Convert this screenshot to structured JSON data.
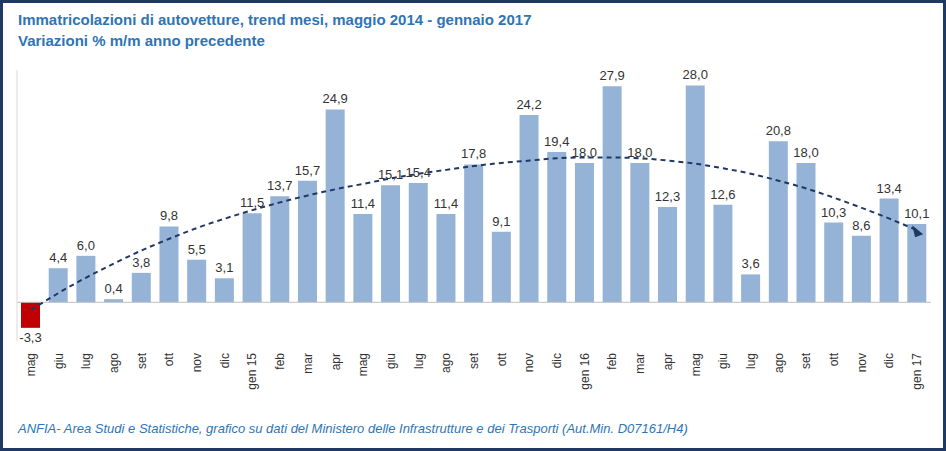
{
  "chart_data": {
    "type": "bar",
    "title": "Immatricolazioni di autovetture, trend mesi, maggio 2014 - gennaio 2017",
    "subtitle": "Variazioni % m/m anno precedente",
    "annotations": [
      "ANFIA- Area Studi e Statistiche, grafico su dati del Ministero delle Infrastrutture e dei Trasporti (Aut.Min. D07161/H4)"
    ],
    "categories": [
      "mag",
      "giu",
      "lug",
      "ago",
      "set",
      "ott",
      "nov",
      "dic",
      "gen 15",
      "feb",
      "mar",
      "apr",
      "mag",
      "giu",
      "lug",
      "ago",
      "set",
      "ott",
      "nov",
      "dic",
      "gen 16",
      "feb",
      "mar",
      "apr",
      "mag",
      "giu",
      "lug",
      "ago",
      "set",
      "ott",
      "nov",
      "dic",
      "gen 17"
    ],
    "series": [
      {
        "type": "bar",
        "values": [
          -3.3,
          4.4,
          6.0,
          0.4,
          3.8,
          9.8,
          5.5,
          3.1,
          11.5,
          13.7,
          15.7,
          24.9,
          11.4,
          15.1,
          15.4,
          11.4,
          17.8,
          9.1,
          24.2,
          19.4,
          18.0,
          27.9,
          18.0,
          12.3,
          28.0,
          12.6,
          3.6,
          20.8,
          18.0,
          10.3,
          8.6,
          13.4,
          10.1
        ],
        "value_labels": [
          "-3,3",
          "4,4",
          "6,0",
          "0,4",
          "3,8",
          "9,8",
          "5,5",
          "3,1",
          "11,5",
          "13,7",
          "15,7",
          "24,9",
          "11,4",
          "15,1",
          "15,4",
          "11,4",
          "17,8",
          "9,1",
          "24,2",
          "19,4",
          "18,0",
          "27,9",
          "18,0",
          "12,3",
          "28,0",
          "12,6",
          "3,6",
          "20,8",
          "18,0",
          "10,3",
          "8,6",
          "13,4",
          "10,1"
        ],
        "colors": [
          "#C00000",
          "#95B3D7",
          "#95B3D7",
          "#95B3D7",
          "#95B3D7",
          "#95B3D7",
          "#95B3D7",
          "#95B3D7",
          "#95B3D7",
          "#95B3D7",
          "#95B3D7",
          "#95B3D7",
          "#95B3D7",
          "#95B3D7",
          "#95B3D7",
          "#95B3D7",
          "#95B3D7",
          "#95B3D7",
          "#95B3D7",
          "#95B3D7",
          "#95B3D7",
          "#95B3D7",
          "#95B3D7",
          "#95B3D7",
          "#95B3D7",
          "#95B3D7",
          "#95B3D7",
          "#95B3D7",
          "#95B3D7",
          "#95B3D7",
          "#95B3D7",
          "#95B3D7",
          "#95B3D7"
        ],
        "data_labels": true
      },
      {
        "type": "line",
        "values": [
          -1.0,
          1.2,
          3.2,
          5.0,
          6.7,
          8.2,
          9.6,
          10.8,
          11.9,
          12.9,
          13.8,
          14.6,
          15.3,
          16.0,
          16.6,
          17.1,
          17.6,
          18.0,
          18.3,
          18.6,
          18.7,
          18.7,
          18.6,
          18.3,
          17.9,
          17.3,
          16.6,
          15.7,
          14.7,
          13.5,
          12.2,
          10.8,
          9.3
        ],
        "color": "#1F3864",
        "line_style": "dashed"
      }
    ],
    "ylim": [
      -5,
      30
    ],
    "yticks": [
      0
    ],
    "grid": false,
    "tick_labels": "x"
  }
}
